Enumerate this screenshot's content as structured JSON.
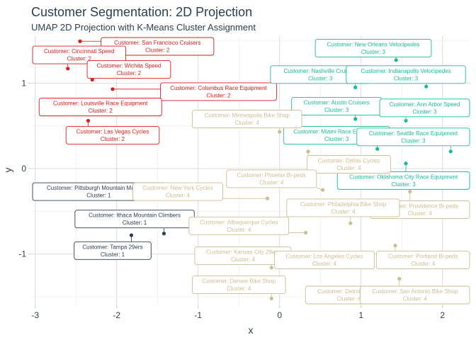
{
  "chart_data": {
    "type": "scatter",
    "title": "Customer Segmentation: 2D Projection",
    "subtitle": "UMAP 2D Projection with K-Means Cluster Assignment",
    "xlabel": "x",
    "ylabel": "y",
    "xlim": [
      -3.05,
      2.35
    ],
    "ylim": [
      -1.6,
      1.55
    ],
    "xticks": [
      -3,
      -2,
      -1,
      0,
      1,
      2
    ],
    "yticks": [
      -1,
      0,
      1
    ],
    "grid": true,
    "legend": "none",
    "cluster_colors": {
      "1": "#2c3e50",
      "2": "#e31a1c",
      "3": "#18bc9c",
      "4": "#ccbe93"
    },
    "points": [
      {
        "customer": "San Francisco Cruisers",
        "cluster": 2,
        "x": -2.45,
        "y": 1.49,
        "lx": -1.5,
        "ly": 1.48
      },
      {
        "customer": "Cincinnati Speed",
        "cluster": 2,
        "x": -2.6,
        "y": 1.17,
        "lx": -2.8,
        "ly": 1.33
      },
      {
        "customer": "Wichita Speed",
        "cluster": 2,
        "x": -2.3,
        "y": 1.04,
        "lx": -1.85,
        "ly": 1.16
      },
      {
        "customer": "Columbus Race Equipment",
        "cluster": 2,
        "x": -2.05,
        "y": 0.93,
        "lx": -0.75,
        "ly": 0.9
      },
      {
        "customer": "Louisville Race Equipment",
        "cluster": 2,
        "x": -2.8,
        "y": 0.76,
        "lx": -2.2,
        "ly": 0.72
      },
      {
        "customer": "Las Vegas Cycles",
        "cluster": 2,
        "x": -2.35,
        "y": 0.56,
        "lx": -2.05,
        "ly": 0.39
      },
      {
        "customer": "Pittsburgh Mountain Machines",
        "cluster": 1,
        "x": -1.65,
        "y": -0.25,
        "lx": -2.35,
        "ly": -0.27
      },
      {
        "customer": "Ithaca Mountain Climbers",
        "cluster": 1,
        "x": -1.42,
        "y": -0.76,
        "lx": -1.78,
        "ly": -0.59
      },
      {
        "customer": "Tampa 29ers",
        "cluster": 1,
        "x": -1.82,
        "y": -0.78,
        "lx": -2.05,
        "ly": -0.96
      },
      {
        "customer": "New Orleans Velocipedes",
        "cluster": 3,
        "x": 1.43,
        "y": 1.27,
        "lx": 1.15,
        "ly": 1.41
      },
      {
        "customer": "Nashville Cruisers",
        "cluster": 3,
        "x": 0.93,
        "y": 0.95,
        "lx": 0.5,
        "ly": 1.1
      },
      {
        "customer": "Indianapolis Velocipedes",
        "cluster": 3,
        "x": 1.8,
        "y": 0.96,
        "lx": 1.55,
        "ly": 1.1
      },
      {
        "customer": "Austin Cruisers",
        "cluster": 3,
        "x": 0.93,
        "y": 0.58,
        "lx": 0.7,
        "ly": 0.73
      },
      {
        "customer": "Ann Arbor Speed",
        "cluster": 3,
        "x": 1.55,
        "y": 0.56,
        "lx": 1.95,
        "ly": 0.71
      },
      {
        "customer": "Miami Race Equipment",
        "cluster": 3,
        "x": 1.2,
        "y": 0.23,
        "lx": 0.7,
        "ly": 0.39
      },
      {
        "customer": "Seattle Race Equipment",
        "cluster": 3,
        "x": 2.1,
        "y": 0.2,
        "lx": 1.8,
        "ly": 0.37
      },
      {
        "customer": "Oklahoma City Race Equipment",
        "cluster": 3,
        "x": 1.55,
        "y": 0.06,
        "lx": 1.6,
        "ly": -0.14
      },
      {
        "customer": "Minneapolis Bike Shop",
        "cluster": 4,
        "x": 0.0,
        "y": 0.43,
        "lx": -0.4,
        "ly": 0.58
      },
      {
        "customer": "Dallas Cycles",
        "cluster": 4,
        "x": 0.35,
        "y": 0.2,
        "lx": 0.85,
        "ly": 0.05
      },
      {
        "customer": "Phoenix Bi-peds",
        "cluster": 4,
        "x": 0.53,
        "y": -0.25,
        "lx": -0.1,
        "ly": -0.12
      },
      {
        "customer": "New York Cycles",
        "cluster": 4,
        "x": -0.15,
        "y": -0.35,
        "lx": -1.25,
        "ly": -0.27
      },
      {
        "customer": "Providence Bi-peds",
        "cluster": 4,
        "x": 1.6,
        "y": -0.27,
        "lx": 2.0,
        "ly": -0.48
      },
      {
        "customer": "Philadelphia Bike Shop",
        "cluster": 4,
        "x": 0.87,
        "y": -0.64,
        "lx": 0.78,
        "ly": -0.46
      },
      {
        "customer": "Albuquerque Cycles",
        "cluster": 4,
        "x": 0.32,
        "y": -0.75,
        "lx": -0.5,
        "ly": -0.67
      },
      {
        "customer": "Kansas City 29ers",
        "cluster": 4,
        "x": -0.1,
        "y": -1.16,
        "lx": -0.45,
        "ly": -1.02
      },
      {
        "customer": "Los Angeles Cycles",
        "cluster": 4,
        "x": 0.85,
        "y": -1.05,
        "lx": 0.55,
        "ly": -1.07
      },
      {
        "customer": "Portland Bi-peds",
        "cluster": 4,
        "x": 1.42,
        "y": -0.9,
        "lx": 1.87,
        "ly": -1.07
      },
      {
        "customer": "Denver Bike Shop",
        "cluster": 4,
        "x": -0.1,
        "y": -1.52,
        "lx": -0.5,
        "ly": -1.36
      },
      {
        "customer": "Detroit Cycles",
        "cluster": 4,
        "x": 0.72,
        "y": -1.4,
        "lx": 0.85,
        "ly": -1.55
      },
      {
        "customer": "San Antonio Bike Shop",
        "cluster": 4,
        "x": 1.47,
        "y": -1.29,
        "lx": 1.87,
        "ly": -1.48
      }
    ]
  }
}
